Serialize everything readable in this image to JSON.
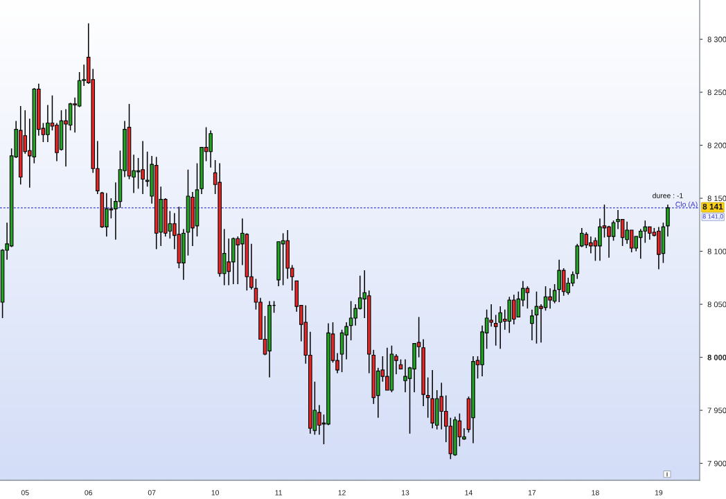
{
  "chart_data": {
    "type": "candlestick",
    "categories": [
      null,
      null,
      null,
      null,
      null,
      "05",
      null,
      null,
      null,
      null,
      null,
      null,
      null,
      null,
      null,
      null,
      null,
      null,
      null,
      "06",
      null,
      null,
      null,
      null,
      null,
      null,
      null,
      null,
      null,
      null,
      null,
      null,
      null,
      "07",
      null,
      null,
      null,
      null,
      null,
      null,
      null,
      null,
      null,
      null,
      null,
      null,
      null,
      "10",
      null,
      null,
      null,
      null,
      null,
      null,
      null,
      null,
      null,
      null,
      null,
      null,
      null,
      "11",
      null,
      null,
      null,
      null,
      null,
      null,
      null,
      null,
      null,
      null,
      null,
      null,
      null,
      "12",
      null,
      null,
      null,
      null,
      null,
      null,
      null,
      null,
      null,
      null,
      null,
      null,
      null,
      "13",
      null,
      null,
      null,
      null,
      null,
      null,
      null,
      null,
      null,
      null,
      null,
      null,
      null,
      "14",
      null,
      null,
      null,
      null,
      null,
      null,
      null,
      null,
      null,
      null,
      null,
      null,
      null,
      "17",
      null,
      null,
      null,
      null,
      null,
      null,
      null,
      null,
      null,
      null,
      null,
      null,
      null,
      "18",
      null,
      null,
      null,
      null,
      null,
      null,
      null,
      null,
      null,
      null,
      null,
      null,
      null,
      "19",
      null,
      null
    ],
    "ohlc": [
      [
        8052,
        8102,
        8037,
        8101
      ],
      [
        8101,
        8127,
        8092,
        8107
      ],
      [
        8105,
        8197,
        8104,
        8190
      ],
      [
        8189,
        8223,
        8188,
        8215
      ],
      [
        8214,
        8237,
        8163,
        8170
      ],
      [
        8209,
        8233,
        8192,
        8194
      ],
      [
        8195,
        8225,
        8160,
        8190
      ],
      [
        8189,
        8254,
        8183,
        8253
      ],
      [
        8253,
        8258,
        8209,
        8215
      ],
      [
        8216,
        8221,
        8203,
        8210
      ],
      [
        8210,
        8238,
        8203,
        8221
      ],
      [
        8221,
        8247,
        8214,
        8218
      ],
      [
        8219,
        8221,
        8185,
        8193
      ],
      [
        8196,
        8233,
        8195,
        8223
      ],
      [
        8223,
        8234,
        8180,
        8220
      ],
      [
        8219,
        8240,
        8214,
        8239
      ],
      [
        8239,
        8245,
        8212,
        8238
      ],
      [
        8237,
        8269,
        8236,
        8261
      ],
      [
        8261,
        8276,
        8256,
        8262
      ],
      [
        8283,
        8315,
        8258,
        8259
      ],
      [
        8262,
        8272,
        8174,
        8178
      ],
      [
        8178,
        8204,
        8154,
        8157
      ],
      [
        8155,
        8156,
        8122,
        8123
      ],
      [
        8123,
        8155,
        8114,
        8140
      ],
      [
        8140,
        8150,
        8131,
        8139
      ],
      [
        8140,
        8165,
        8111,
        8147
      ],
      [
        8147,
        8195,
        8141,
        8177
      ],
      [
        8176,
        8223,
        8170,
        8215
      ],
      [
        8217,
        8239,
        8168,
        8171
      ],
      [
        8170,
        8191,
        8155,
        8176
      ],
      [
        8175,
        8188,
        8159,
        8176
      ],
      [
        8177,
        8204,
        8154,
        8168
      ],
      [
        8166,
        8194,
        8161,
        8167
      ],
      [
        8152,
        8190,
        8145,
        8182
      ],
      [
        8181,
        8189,
        8102,
        8117
      ],
      [
        8118,
        8161,
        8105,
        8149
      ],
      [
        8149,
        8150,
        8114,
        8117
      ],
      [
        8119,
        8138,
        8112,
        8126
      ],
      [
        8126,
        8136,
        8102,
        8115
      ],
      [
        8116,
        8142,
        8084,
        8089
      ],
      [
        8089,
        8121,
        8073,
        8117
      ],
      [
        8118,
        8177,
        8096,
        8152
      ],
      [
        8151,
        8156,
        8105,
        8122
      ],
      [
        8124,
        8183,
        8114,
        8158
      ],
      [
        8159,
        8198,
        8154,
        8198
      ],
      [
        8198,
        8217,
        8185,
        8194
      ],
      [
        8194,
        8214,
        8179,
        8211
      ],
      [
        8174,
        8186,
        8154,
        8163
      ],
      [
        8165,
        8183,
        8076,
        8079
      ],
      [
        8079,
        8121,
        8068,
        8098
      ],
      [
        8090,
        8112,
        8068,
        8081
      ],
      [
        8090,
        8113,
        8069,
        8112
      ],
      [
        8112,
        8114,
        8069,
        8106
      ],
      [
        8107,
        8131,
        8087,
        8117
      ],
      [
        8116,
        8117,
        8063,
        8076
      ],
      [
        8076,
        8107,
        8064,
        8066
      ],
      [
        8065,
        8074,
        8045,
        8052
      ],
      [
        8052,
        8056,
        8017,
        8017
      ],
      [
        8017,
        8039,
        8002,
        8003
      ],
      [
        8006,
        8053,
        7981,
        8049
      ],
      [
        8049,
        8053,
        8042,
        8049
      ],
      [
        8073,
        8109,
        8067,
        8109
      ],
      [
        8107,
        8117,
        8068,
        8110
      ],
      [
        8110,
        8120,
        8074,
        8084
      ],
      [
        8084,
        8087,
        8063,
        8076
      ],
      [
        8072,
        8072,
        8043,
        8048
      ],
      [
        8049,
        8049,
        8015,
        8031
      ],
      [
        8033,
        8049,
        7994,
        8002
      ],
      [
        8002,
        8024,
        7928,
        7933
      ],
      [
        7931,
        7977,
        7927,
        7950
      ],
      [
        7948,
        7955,
        7927,
        7936
      ],
      [
        7937,
        7946,
        7918,
        7938
      ],
      [
        7937,
        8032,
        7936,
        8023
      ],
      [
        8022,
        8033,
        7995,
        7997
      ],
      [
        7997,
        8004,
        7985,
        7988
      ],
      [
        8003,
        8026,
        7986,
        8023
      ],
      [
        8021,
        8033,
        7998,
        8029
      ],
      [
        8030,
        8053,
        8016,
        8037
      ],
      [
        8037,
        8050,
        8030,
        8046
      ],
      [
        8046,
        8077,
        8045,
        8056
      ],
      [
        8055,
        8082,
        8037,
        8061
      ],
      [
        8058,
        8063,
        7985,
        8003
      ],
      [
        8002,
        8007,
        7956,
        7962
      ],
      [
        7964,
        7990,
        7943,
        7987
      ],
      [
        7988,
        8001,
        7977,
        7982
      ],
      [
        7982,
        8009,
        7969,
        7969
      ],
      [
        7969,
        8011,
        7967,
        8003
      ],
      [
        8001,
        8003,
        7984,
        7997
      ],
      [
        7993,
        7998,
        7989,
        7989
      ],
      [
        7978,
        7998,
        7967,
        7982
      ],
      [
        7980,
        7991,
        7928,
        7990
      ],
      [
        7989,
        8013,
        7967,
        8013
      ],
      [
        8014,
        8038,
        8000,
        8010
      ],
      [
        8009,
        8017,
        7954,
        7965
      ],
      [
        7964,
        7981,
        7943,
        7962
      ],
      [
        7961,
        7988,
        7933,
        7938
      ],
      [
        7936,
        7969,
        7932,
        7961
      ],
      [
        7963,
        7976,
        7932,
        7949
      ],
      [
        7949,
        7964,
        7920,
        7935
      ],
      [
        7935,
        7943,
        7904,
        7909
      ],
      [
        7908,
        7944,
        7907,
        7941
      ],
      [
        7940,
        7947,
        7916,
        7925
      ],
      [
        7923,
        7933,
        7922,
        7925
      ],
      [
        7961,
        7963,
        7929,
        7932
      ],
      [
        7943,
        8001,
        7919,
        7996
      ],
      [
        7997,
        8001,
        7980,
        7993
      ],
      [
        7993,
        8030,
        7982,
        8024
      ],
      [
        8023,
        8045,
        8008,
        8037
      ],
      [
        8035,
        8050,
        8029,
        8033
      ],
      [
        8032,
        8040,
        8011,
        8029
      ],
      [
        8033,
        8048,
        8008,
        8042
      ],
      [
        8036,
        8045,
        8026,
        8034
      ],
      [
        8034,
        8057,
        8023,
        8054
      ],
      [
        8054,
        8059,
        8031,
        8036
      ],
      [
        8038,
        8062,
        8038,
        8055
      ],
      [
        8054,
        8072,
        8048,
        8065
      ],
      [
        8065,
        8067,
        8046,
        8061
      ],
      [
        8032,
        8045,
        8016,
        8039
      ],
      [
        8040,
        8062,
        8013,
        8048
      ],
      [
        8048,
        8050,
        8014,
        8046
      ],
      [
        8047,
        8067,
        8044,
        8057
      ],
      [
        8057,
        8065,
        8046,
        8054
      ],
      [
        8053,
        8069,
        8051,
        8063
      ],
      [
        8064,
        8092,
        8052,
        8082
      ],
      [
        8082,
        8084,
        8058,
        8062
      ],
      [
        8061,
        8075,
        8059,
        8070
      ],
      [
        8070,
        8081,
        8067,
        8078
      ],
      [
        8079,
        8107,
        8074,
        8105
      ],
      [
        8105,
        8122,
        8104,
        8117
      ],
      [
        8116,
        8118,
        8103,
        8106
      ],
      [
        8108,
        8114,
        8098,
        8105
      ],
      [
        8110,
        8113,
        8091,
        8105
      ],
      [
        8105,
        8131,
        8091,
        8123
      ],
      [
        8124,
        8144,
        8113,
        8122
      ],
      [
        8123,
        8124,
        8094,
        8114
      ],
      [
        8114,
        8129,
        8110,
        8127
      ],
      [
        8128,
        8139,
        8121,
        8130
      ],
      [
        8130,
        8130,
        8105,
        8113
      ],
      [
        8111,
        8128,
        8107,
        8120
      ],
      [
        8120,
        8120,
        8099,
        8103
      ],
      [
        8103,
        8114,
        8100,
        8114
      ],
      [
        8113,
        8121,
        8093,
        8119
      ],
      [
        8119,
        8129,
        8108,
        8123
      ],
      [
        8123,
        8123,
        8111,
        8117
      ],
      [
        8118,
        8122,
        8114,
        8115
      ],
      [
        8119,
        8123,
        8083,
        8097
      ],
      [
        8098,
        8127,
        8089,
        8123
      ],
      [
        8124,
        8144,
        8114,
        8141
      ]
    ],
    "colors": [
      "#24a424",
      "#24a424",
      "#24a424",
      "#24a424",
      "#e82626",
      "#e82626",
      "#e82626",
      "#24a424",
      "#e82626",
      "#e82626",
      "#24a424",
      "#e82626",
      "#e82626",
      "#24a424",
      "#e82626",
      "#24a424",
      "#e82626",
      "#24a424",
      "#24a424",
      "#e82626",
      "#e82626",
      "#e82626",
      "#e82626",
      "#24a424",
      "#e82626",
      "#24a424",
      "#24a424",
      "#24a424",
      "#e82626",
      "#24a424",
      "#24a424",
      "#e82626",
      "#24a424",
      "#24a424",
      "#e82626",
      "#24a424",
      "#e82626",
      "#24a424",
      "#e82626",
      "#e82626",
      "#24a424",
      "#24a424",
      "#e82626",
      "#24a424",
      "#24a424",
      "#e82626",
      "#24a424",
      "#e82626",
      "#e82626",
      "#24a424",
      "#e82626",
      "#24a424",
      "#e82626",
      "#24a424",
      "#e82626",
      "#e82626",
      "#e82626",
      "#e82626",
      "#e82626",
      "#24a424",
      "#000000",
      "#24a424",
      "#24a424",
      "#e82626",
      "#e82626",
      "#e82626",
      "#e82626",
      "#e82626",
      "#e82626",
      "#24a424",
      "#e82626",
      "#24a424",
      "#24a424",
      "#e82626",
      "#e82626",
      "#24a424",
      "#24a424",
      "#24a424",
      "#24a424",
      "#24a424",
      "#24a424",
      "#e82626",
      "#e82626",
      "#24a424",
      "#e82626",
      "#e82626",
      "#24a424",
      "#e82626",
      "#e82626",
      "#24a424",
      "#24a424",
      "#24a424",
      "#e82626",
      "#e82626",
      "#e82626",
      "#e82626",
      "#24a424",
      "#e82626",
      "#e82626",
      "#e82626",
      "#24a424",
      "#e82626",
      "#24a424",
      "#e82626",
      "#24a424",
      "#e82626",
      "#24a424",
      "#24a424",
      "#e82626",
      "#e82626",
      "#24a424",
      "#e82626",
      "#24a424",
      "#e82626",
      "#24a424",
      "#24a424",
      "#e82626",
      "#24a424",
      "#24a424",
      "#e82626",
      "#24a424",
      "#e82626",
      "#24a424",
      "#24a424",
      "#e82626",
      "#24a424",
      "#24a424",
      "#24a424",
      "#24a424",
      "#e82626",
      "#e82626",
      "#e82626",
      "#24a424",
      "#e82626",
      "#e82626",
      "#24a424",
      "#24a424",
      "#e82626",
      "#24a424",
      "#e82626",
      "#24a424",
      "#24a424",
      "#24a424",
      "#e82626",
      "#e82626",
      "#e82626",
      "#24a424",
      "#24a424"
    ],
    "ylim": [
      7884,
      8337
    ],
    "yticks": [
      {
        "value": 7900,
        "label": "7 900"
      },
      {
        "value": 7950,
        "label": "7 950"
      },
      {
        "value": 8000,
        "label": "8 000"
      },
      {
        "value": 8050,
        "label": "8 050"
      },
      {
        "value": 8100,
        "label": "8 100"
      },
      {
        "value": 8150,
        "label": "8 150"
      },
      {
        "value": 8200,
        "label": "8 200"
      },
      {
        "value": 8250,
        "label": "8 250"
      },
      {
        "value": 8300,
        "label": "8 300"
      }
    ],
    "ref_lines": [
      {
        "axis": "y",
        "value": 8141,
        "label": "Clo (A)",
        "color": "#3a3ad6",
        "line_style": "dashed"
      }
    ],
    "annotations": [
      {
        "text": "duree : -1",
        "y": 8141
      },
      "8 141",
      "8 141,0"
    ]
  }
}
